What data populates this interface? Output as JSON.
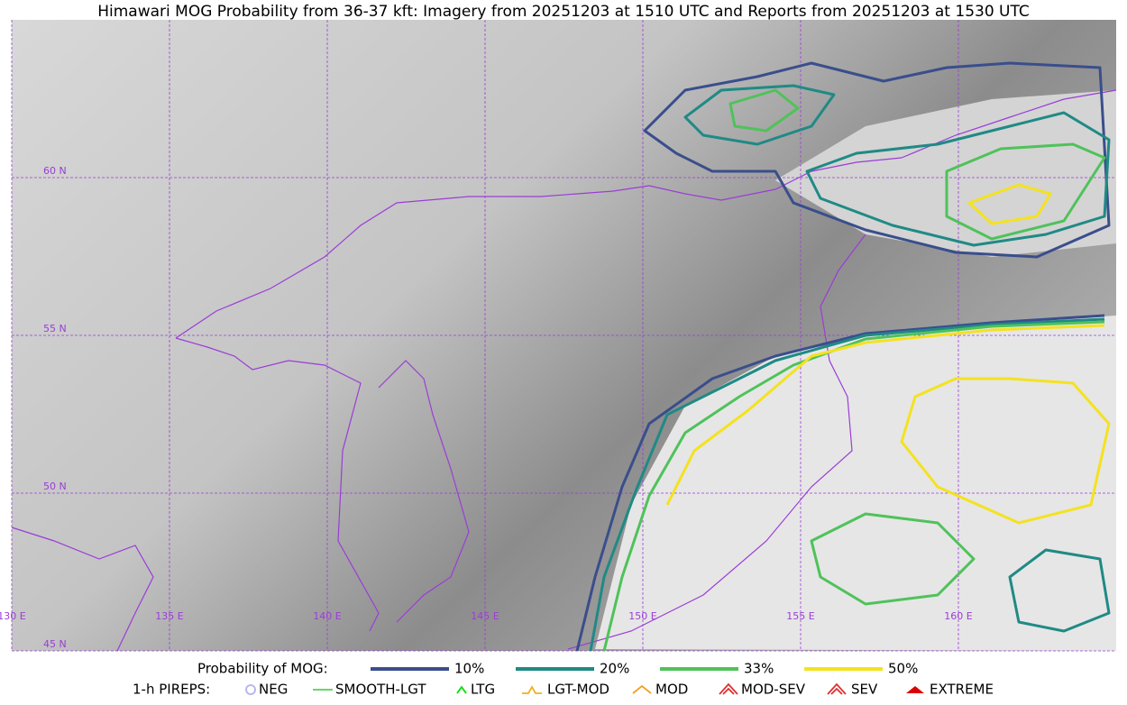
{
  "title": "Himawari MOG Probability from 36-37 kft: Imagery from 20251203 at 1510 UTC and Reports from 20251203 at 1530 UTC",
  "map": {
    "lat_labels": [
      "60 N",
      "55 N",
      "50 N",
      "45 N"
    ],
    "lon_labels": [
      "130 E",
      "135 E",
      "140 E",
      "145 E",
      "150 E",
      "155 E",
      "160 E"
    ]
  },
  "legend": {
    "probability": {
      "label": "Probability of MOG:",
      "items": [
        {
          "name": "10%",
          "color": "#3a4e8c"
        },
        {
          "name": "20%",
          "color": "#1f8a85"
        },
        {
          "name": "33%",
          "color": "#4fc25a"
        },
        {
          "name": "50%",
          "color": "#f4e21f"
        }
      ]
    },
    "pireps": {
      "label": "1-h PIREPS:",
      "items": [
        {
          "name": "NEG",
          "color": "#b8b8f0"
        },
        {
          "name": "SMOOTH-LGT",
          "color": "#33cc33"
        },
        {
          "name": "LTG",
          "color": "#00dd00"
        },
        {
          "name": "LGT-MOD",
          "color": "#f0b020"
        },
        {
          "name": "MOD",
          "color": "#f0a020"
        },
        {
          "name": "MOD-SEV",
          "color": "#e03030"
        },
        {
          "name": "SEV",
          "color": "#e03030"
        },
        {
          "name": "EXTREME",
          "color": "#dd0000"
        }
      ]
    }
  }
}
